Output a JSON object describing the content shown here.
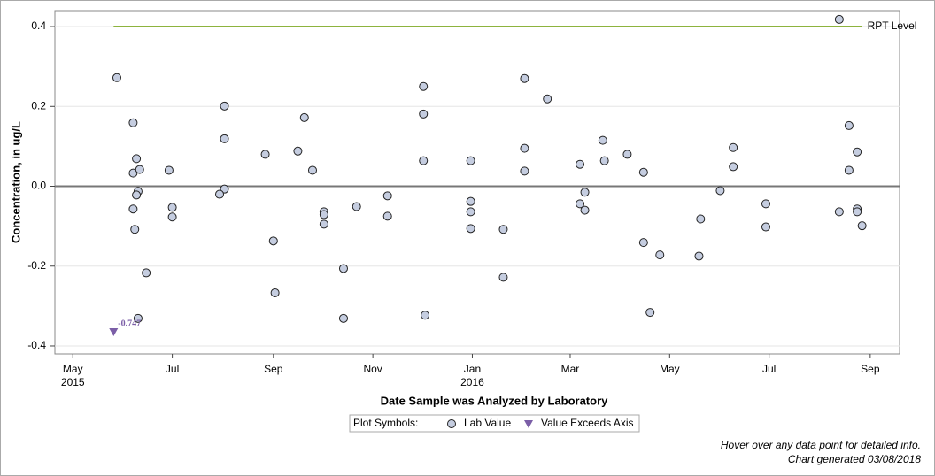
{
  "chart_data": {
    "type": "scatter",
    "xlabel": "Date Sample was Analyzed by Laboratory",
    "ylabel": "Concentration, in ug/L",
    "xlim": [
      "2015-04-20",
      "2016-09-19"
    ],
    "ylim": [
      -0.42,
      0.44
    ],
    "yticks": [
      -0.4,
      -0.2,
      {
        "value": 0,
        "label": "0.0"
      },
      0.2,
      0.4
    ],
    "xticks": [
      {
        "value": "2015-05-01",
        "label": "May"
      },
      {
        "value": "2015-07-01",
        "label": "Jul"
      },
      {
        "value": "2015-09-01",
        "label": "Sep"
      },
      {
        "value": "2015-11-01",
        "label": "Nov"
      },
      {
        "value": "2016-01-01",
        "label": "Jan"
      },
      {
        "value": "2016-03-01",
        "label": "Mar"
      },
      {
        "value": "2016-05-01",
        "label": "May"
      },
      {
        "value": "2016-07-01",
        "label": "Jul"
      },
      {
        "value": "2016-09-01",
        "label": "Sep"
      }
    ],
    "xtick_years": [
      {
        "value": "2015-05-01",
        "label": "2015"
      },
      {
        "value": "2016-01-01",
        "label": "2016"
      }
    ],
    "grid": true,
    "reference_line": {
      "label": "RPT Level",
      "value": 0.4,
      "x": [
        "2015-05-26",
        "2016-08-27"
      ],
      "color": "#8db33e"
    },
    "legend_title": "Plot Symbols:",
    "series": [
      {
        "name": "Lab Value",
        "color": "#c5cde0",
        "x": [
          "2015-05-28",
          "2015-06-07",
          "2015-06-09",
          "2015-06-07",
          "2015-06-11",
          "2015-06-10",
          "2015-06-09",
          "2015-06-07",
          "2015-06-08",
          "2015-06-15",
          "2015-06-10",
          "2015-06-29",
          "2015-07-01",
          "2015-07-01",
          "2015-08-02",
          "2015-08-02",
          "2015-08-02",
          "2015-07-30",
          "2015-08-27",
          "2015-09-01",
          "2015-09-02",
          "2015-09-16",
          "2015-09-20",
          "2015-09-25",
          "2015-10-02",
          "2015-10-02",
          "2015-10-02",
          "2015-10-14",
          "2015-10-14",
          "2015-10-22",
          "2015-11-10",
          "2015-11-10",
          "2015-12-02",
          "2015-12-02",
          "2015-12-02",
          "2015-12-03",
          "2015-12-31",
          "2015-12-31",
          "2015-12-31",
          "2015-12-31",
          "2016-01-20",
          "2016-01-20",
          "2016-02-02",
          "2016-02-02",
          "2016-02-02",
          "2016-02-16",
          "2016-03-07",
          "2016-03-10",
          "2016-03-07",
          "2016-03-10",
          "2016-03-21",
          "2016-03-22",
          "2016-04-05",
          "2016-04-15",
          "2016-04-15",
          "2016-04-19",
          "2016-04-25",
          "2016-05-19",
          "2016-05-20",
          "2016-06-01",
          "2016-06-09",
          "2016-06-09",
          "2016-06-29",
          "2016-06-29",
          "2016-08-13",
          "2016-08-19",
          "2016-08-19",
          "2016-08-24",
          "2016-08-13",
          "2016-08-24",
          "2016-08-24",
          "2016-08-27"
        ],
        "values": [
          0.272,
          0.159,
          0.069,
          0.033,
          0.042,
          -0.013,
          -0.022,
          -0.057,
          -0.108,
          -0.217,
          -0.331,
          0.04,
          -0.053,
          -0.077,
          0.201,
          0.119,
          -0.007,
          -0.02,
          0.08,
          -0.137,
          -0.267,
          0.088,
          0.172,
          0.04,
          -0.064,
          -0.071,
          -0.095,
          -0.206,
          -0.331,
          -0.051,
          -0.024,
          -0.075,
          0.25,
          0.181,
          0.064,
          -0.323,
          0.064,
          -0.038,
          -0.064,
          -0.106,
          -0.108,
          -0.228,
          0.27,
          0.095,
          0.038,
          0.219,
          0.055,
          -0.015,
          -0.044,
          -0.06,
          0.115,
          0.064,
          0.08,
          0.035,
          -0.141,
          -0.316,
          -0.172,
          -0.175,
          -0.082,
          -0.011,
          0.097,
          0.049,
          -0.044,
          -0.102,
          0.418,
          0.152,
          0.04,
          0.086,
          -0.064,
          -0.057,
          -0.064,
          -0.099
        ]
      },
      {
        "name": "Value Exceeds Axis",
        "color": "#7b5ea7",
        "x": [
          "2015-05-26"
        ],
        "values": [
          -0.747
        ],
        "value_labels": [
          "-0.747"
        ]
      }
    ],
    "footnotes": [
      "Hover over any data point for detailed info.",
      "Chart generated 03/08/2018"
    ]
  }
}
